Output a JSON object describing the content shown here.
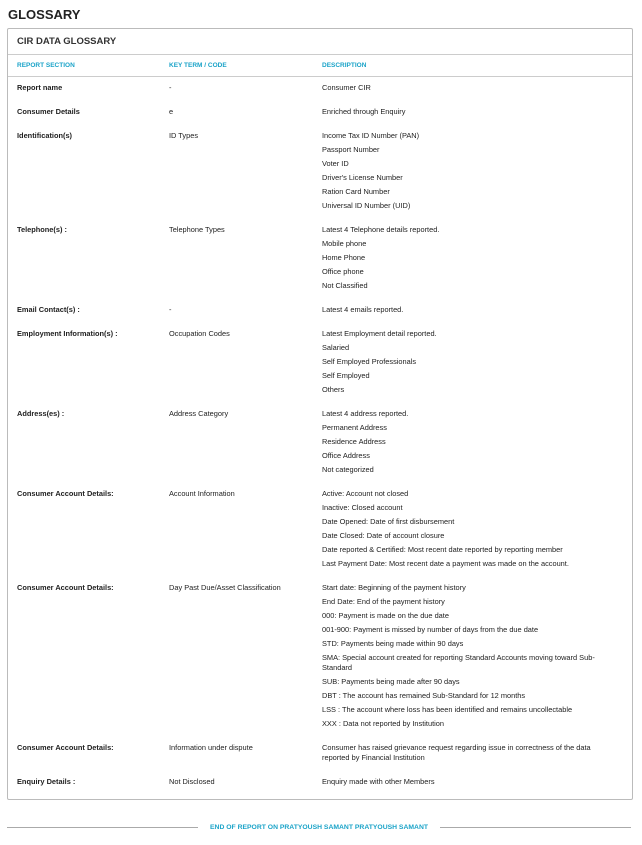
{
  "page_title": "GLOSSARY",
  "box_title": "CIR DATA GLOSSARY",
  "columns": [
    "REPORT SECTION",
    "KEY TERM / CODE",
    "DESCRIPTION"
  ],
  "rows": [
    {
      "section": "Report name",
      "term": "-",
      "desc": [
        "Consumer CIR"
      ]
    },
    {
      "section": "Consumer Details",
      "term": "e",
      "desc": [
        "Enriched through Enquiry"
      ]
    },
    {
      "section": "Identification(s)",
      "term": "ID Types",
      "desc": [
        "Income Tax ID Number (PAN)",
        "Passport Number",
        "Voter ID",
        "Driver's License Number",
        "Ration Card Number",
        "Universal ID Number (UID)"
      ]
    },
    {
      "section": "Telephone(s) :",
      "term": "Telephone Types",
      "desc": [
        "Latest 4 Telephone details reported.",
        "Mobile phone",
        "Home Phone",
        "Office phone",
        "Not Classified"
      ]
    },
    {
      "section": "Email Contact(s) :",
      "term": "-",
      "desc": [
        "Latest 4 emails reported."
      ]
    },
    {
      "section": "Employment Information(s) :",
      "term": "Occupation Codes",
      "desc": [
        "Latest Employment detail reported.",
        "Salaried",
        "Self Employed Professionals",
        "Self Employed",
        "Others"
      ]
    },
    {
      "section": "Address(es) :",
      "term": "Address Category",
      "desc": [
        "Latest 4 address reported.",
        "Permanent Address",
        "Residence Address",
        "Office Address",
        "Not categorized"
      ]
    },
    {
      "section": "Consumer Account Details:",
      "term": "Account Information",
      "desc": [
        "Active: Account not closed",
        "Inactive: Closed account",
        "Date Opened: Date of first disbursement",
        "Date Closed: Date of account closure",
        "Date reported & Certified: Most recent date reported by reporting member",
        "Last Payment Date: Most recent date a payment was made on the account."
      ]
    },
    {
      "section": "Consumer Account Details:",
      "term": "Day Past Due/Asset Classification",
      "desc": [
        "Start date: Beginning of the payment history",
        "End Date: End of the payment history",
        "000: Payment is made on the due date",
        "001-900: Payment is missed by number of days from the due date",
        "STD: Payments being made within 90 days",
        "SMA: Special account created for reporting Standard Accounts moving toward Sub-Standard",
        "SUB: Payments being made after 90 days",
        "DBT : The account has remained Sub-Standard for 12 months",
        "LSS : The account where loss has been identified and remains uncollectable",
        "XXX : Data not reported by Institution"
      ]
    },
    {
      "section": "Consumer Account Details:",
      "term": "Information under dispute",
      "desc": [
        "Consumer has raised grievance request regarding issue in correctness of the data reported by Financial Institution"
      ]
    },
    {
      "section": "Enquiry Details :",
      "term": "Not Disclosed",
      "desc": [
        "Enquiry made with other Members"
      ]
    }
  ],
  "footer": "END OF REPORT ON PRATYOUSH SAMANT PRATYOUSH SAMANT",
  "colors": {
    "accent": "#1aa3c8",
    "border": "#bbbbbb"
  }
}
